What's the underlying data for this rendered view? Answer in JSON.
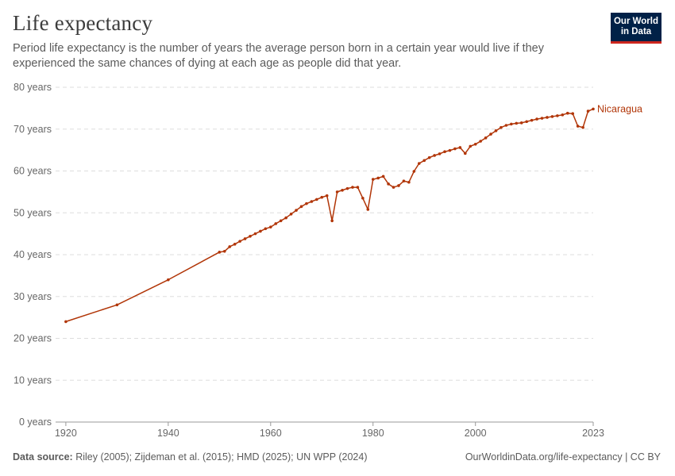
{
  "header": {
    "title": "Life expectancy",
    "subtitle": "Period life expectancy is the number of years the average person born in a certain year would live if they experienced the same chances of dying at each age as people did that year."
  },
  "logo": {
    "line1": "Our World",
    "line2": "in Data",
    "bg_color": "#002147",
    "accent_color": "#ce261e"
  },
  "footer": {
    "source_label": "Data source:",
    "source_text": "Riley (2005); Zijdeman et al. (2015); HMD (2025); UN WPP (2024)",
    "url_text": "OurWorldinData.org/life-expectancy | CC BY"
  },
  "chart_data": {
    "type": "line",
    "title": "Life expectancy",
    "xlabel": "",
    "ylabel": "",
    "xlim": [
      1918,
      2023
    ],
    "ylim": [
      0,
      80
    ],
    "y_ticks": [
      0,
      10,
      20,
      30,
      40,
      50,
      60,
      70,
      80
    ],
    "y_tick_labels": [
      "0 years",
      "10 years",
      "20 years",
      "30 years",
      "40 years",
      "50 years",
      "60 years",
      "70 years",
      "80 years"
    ],
    "x_ticks": [
      1920,
      1940,
      1960,
      1980,
      2000,
      2023
    ],
    "x_tick_labels": [
      "1920",
      "1940",
      "1960",
      "1980",
      "2000",
      "2023"
    ],
    "grid": "horizontal dashed",
    "legend": "line end label",
    "series": [
      {
        "name": "Nicaragua",
        "color": "#b13507",
        "x": [
          1920,
          1930,
          1940,
          1950,
          1951,
          1952,
          1953,
          1954,
          1955,
          1956,
          1957,
          1958,
          1959,
          1960,
          1961,
          1962,
          1963,
          1964,
          1965,
          1966,
          1967,
          1968,
          1969,
          1970,
          1971,
          1972,
          1973,
          1974,
          1975,
          1976,
          1977,
          1978,
          1979,
          1980,
          1981,
          1982,
          1983,
          1984,
          1985,
          1986,
          1987,
          1988,
          1989,
          1990,
          1991,
          1992,
          1993,
          1994,
          1995,
          1996,
          1997,
          1998,
          1999,
          2000,
          2001,
          2002,
          2003,
          2004,
          2005,
          2006,
          2007,
          2008,
          2009,
          2010,
          2011,
          2012,
          2013,
          2014,
          2015,
          2016,
          2017,
          2018,
          2019,
          2020,
          2021,
          2022,
          2023
        ],
        "y": [
          24.0,
          28.0,
          34.0,
          40.6,
          40.8,
          41.9,
          42.5,
          43.2,
          43.8,
          44.4,
          45.0,
          45.6,
          46.2,
          46.6,
          47.4,
          48.1,
          48.8,
          49.7,
          50.6,
          51.5,
          52.2,
          52.7,
          53.2,
          53.7,
          54.1,
          48.1,
          55.0,
          55.4,
          55.8,
          56.1,
          56.1,
          53.5,
          50.8,
          58.0,
          58.3,
          58.7,
          56.9,
          56.1,
          56.5,
          57.6,
          57.3,
          59.9,
          61.8,
          62.5,
          63.2,
          63.7,
          64.1,
          64.6,
          64.9,
          65.3,
          65.6,
          64.2,
          65.9,
          66.4,
          67.1,
          67.9,
          68.8,
          69.6,
          70.4,
          70.9,
          71.2,
          71.4,
          71.5,
          71.8,
          72.1,
          72.4,
          72.6,
          72.8,
          73.0,
          73.2,
          73.4,
          73.8,
          73.7,
          70.7,
          70.4,
          74.3,
          74.8
        ]
      }
    ]
  }
}
